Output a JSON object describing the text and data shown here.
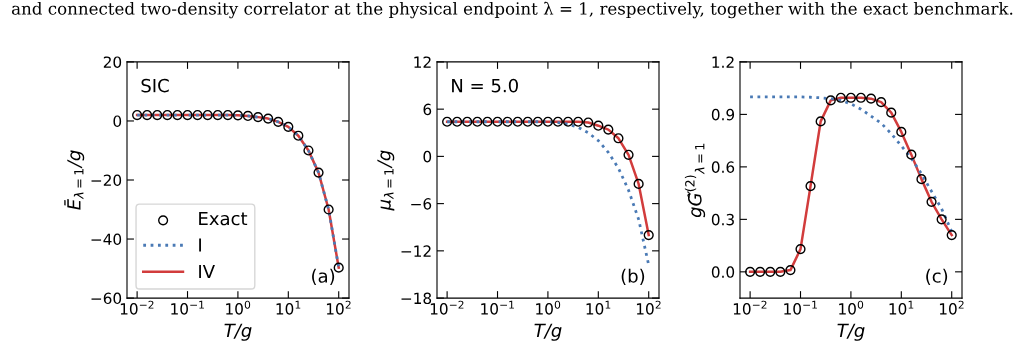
{
  "chart_data": [
    {
      "type": "line",
      "xlabel": "T/g",
      "ylabel": "Ē$_{λ=1}$/g",
      "log": "x",
      "x": [
        0.01,
        0.0158,
        0.0251,
        0.0398,
        0.0631,
        0.1,
        0.158,
        0.251,
        0.398,
        0.631,
        1,
        1.58,
        2.51,
        3.98,
        6.31,
        10,
        15.8,
        25.1,
        39.8,
        63.1,
        100
      ],
      "xlim": [
        0.0063,
        160
      ],
      "xticks": [
        {
          "value": 0.01,
          "label": "10$^{−2}$"
        },
        {
          "value": 0.1,
          "label": "10$^{−1}$"
        },
        {
          "value": 1,
          "label": "10$^{0}$"
        },
        {
          "value": 10,
          "label": "10$^{1}$"
        },
        {
          "value": 100,
          "label": "10$^{2}$"
        }
      ],
      "ylim": [
        -60,
        20
      ],
      "yticks": [
        {
          "value": -60,
          "label": "−60"
        },
        {
          "value": -40,
          "label": "−40"
        },
        {
          "value": -20,
          "label": "−20"
        },
        0,
        20
      ],
      "legend": "lower left",
      "grid": false,
      "annotations": [
        "SIC",
        "(a)",
        "and connected two-density correlator at the physical endpoint λ = 1, respectively, together with the exact benchmark."
      ],
      "series": [
        {
          "name": "Exact",
          "type": "scatter",
          "marker": "circle",
          "color": "#000000",
          "values": [
            2,
            2,
            2,
            2,
            2,
            2,
            2,
            2,
            2,
            2,
            1.9,
            1.7,
            1.3,
            0.8,
            -0.3,
            -2,
            -5,
            -10,
            -17.5,
            -30,
            -49.7
          ]
        },
        {
          "name": "I",
          "line_style": "dotted",
          "color": "#4a7ab5",
          "values": [
            2,
            2,
            2,
            2,
            2,
            2,
            2,
            2,
            2,
            2,
            1.9,
            1.7,
            1.3,
            0.8,
            -0.3,
            -2,
            -5,
            -10,
            -17.5,
            -30,
            -49.7
          ]
        },
        {
          "name": "IV",
          "line_style": "solid",
          "color": "#d23c3c",
          "values": [
            2,
            2,
            2,
            2,
            2,
            2,
            2,
            2,
            2,
            2,
            1.9,
            1.7,
            1.3,
            0.8,
            -0.3,
            -2,
            -5,
            -10,
            -17.5,
            -30,
            -49.7
          ]
        }
      ]
    },
    {
      "type": "line",
      "xlabel": "T/g",
      "ylabel": "μ$_{λ=1}$/g",
      "log": "x",
      "x": [
        0.01,
        0.0158,
        0.0251,
        0.0398,
        0.0631,
        0.1,
        0.158,
        0.251,
        0.398,
        0.631,
        1,
        1.58,
        2.51,
        3.98,
        6.31,
        10,
        15.8,
        25.1,
        39.8,
        63.1,
        100
      ],
      "xlim": [
        0.0063,
        160
      ],
      "xticks": [
        {
          "value": 0.01,
          "label": "10$^{−2}$"
        },
        {
          "value": 0.1,
          "label": "10$^{−1}$"
        },
        {
          "value": 1,
          "label": "10$^{0}$"
        },
        {
          "value": 10,
          "label": "10$^{1}$"
        },
        {
          "value": 100,
          "label": "10$^{2}$"
        }
      ],
      "ylim": [
        -18,
        12
      ],
      "yticks": [
        {
          "value": -18,
          "label": "−18"
        },
        {
          "value": -12,
          "label": "−12"
        },
        {
          "value": -6,
          "label": "−6"
        },
        0,
        6,
        12
      ],
      "grid": false,
      "annotations": [
        "N = 5.0",
        "(b)"
      ],
      "series": [
        {
          "type": "scatter",
          "marker": "circle",
          "color": "#000000",
          "values": [
            4.4,
            4.4,
            4.4,
            4.4,
            4.4,
            4.4,
            4.4,
            4.4,
            4.4,
            4.4,
            4.4,
            4.4,
            4.4,
            4.4,
            4.3,
            3.9,
            3.4,
            2.3,
            0.2,
            -3.5,
            -10
          ]
        },
        {
          "line_style": "dotted",
          "color": "#4a7ab5",
          "values": [
            4.4,
            4.4,
            4.4,
            4.4,
            4.4,
            4.4,
            4.4,
            4.4,
            4.4,
            4.4,
            4.4,
            4.3,
            4.1,
            3.7,
            3.0,
            2.0,
            0.5,
            -1.5,
            -4.3,
            -8,
            -13.8
          ]
        },
        {
          "line_style": "solid",
          "color": "#d23c3c",
          "values": [
            4.4,
            4.4,
            4.4,
            4.4,
            4.4,
            4.4,
            4.4,
            4.4,
            4.4,
            4.4,
            4.4,
            4.4,
            4.4,
            4.4,
            4.3,
            3.9,
            3.4,
            2.3,
            0.2,
            -3.5,
            -10
          ]
        }
      ]
    },
    {
      "type": "line",
      "xlabel": "T/g",
      "ylabel": "gG̃$^{(2)}$$_{λ=1}$",
      "log": "x",
      "x": [
        0.01,
        0.0158,
        0.0251,
        0.0398,
        0.0631,
        0.1,
        0.158,
        0.251,
        0.398,
        0.631,
        1,
        1.58,
        2.51,
        3.98,
        6.31,
        10,
        15.8,
        25.1,
        39.8,
        63.1,
        100
      ],
      "xlim": [
        0.0063,
        160
      ],
      "xticks": [
        {
          "value": 0.01,
          "label": "10$^{−2}$"
        },
        {
          "value": 0.1,
          "label": "10$^{−1}$"
        },
        {
          "value": 1,
          "label": "10$^{0}$"
        },
        {
          "value": 10,
          "label": "10$^{1}$"
        },
        {
          "value": 100,
          "label": "10$^{2}$"
        }
      ],
      "ylim": [
        -0.15,
        1.2
      ],
      "yticks": [
        {
          "value": 0,
          "label": "0.0"
        },
        0.3,
        0.6,
        0.9,
        1.2
      ],
      "grid": false,
      "annotations": [
        "(c)"
      ],
      "series": [
        {
          "type": "scatter",
          "marker": "circle",
          "color": "#000000",
          "values": [
            0,
            0,
            0,
            0,
            0.01,
            0.13,
            0.49,
            0.86,
            0.98,
            0.995,
            0.995,
            0.995,
            0.99,
            0.97,
            0.91,
            0.8,
            0.67,
            0.53,
            0.4,
            0.3,
            0.21
          ]
        },
        {
          "line_style": "dotted",
          "color": "#4a7ab5",
          "values": [
            1,
            1,
            1,
            1,
            1,
            1,
            0.998,
            0.995,
            0.99,
            0.98,
            0.96,
            0.93,
            0.89,
            0.85,
            0.79,
            0.72,
            0.65,
            0.56,
            0.46,
            0.36,
            0.23
          ]
        },
        {
          "line_style": "solid",
          "color": "#d23c3c",
          "values": [
            0,
            0,
            0,
            0,
            0.01,
            0.13,
            0.49,
            0.86,
            0.98,
            0.995,
            0.995,
            0.995,
            0.99,
            0.97,
            0.91,
            0.8,
            0.67,
            0.53,
            0.4,
            0.3,
            0.21
          ]
        }
      ]
    }
  ]
}
